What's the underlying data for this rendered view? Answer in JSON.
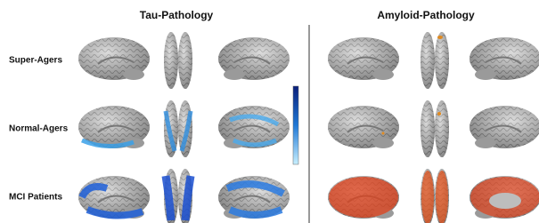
{
  "header": {
    "columns": [
      "Tau-Pathology",
      "Amyloid-Pathology"
    ]
  },
  "rows": [
    "Super-Agers",
    "Normal-Agers",
    "MCI Patients"
  ]
}
